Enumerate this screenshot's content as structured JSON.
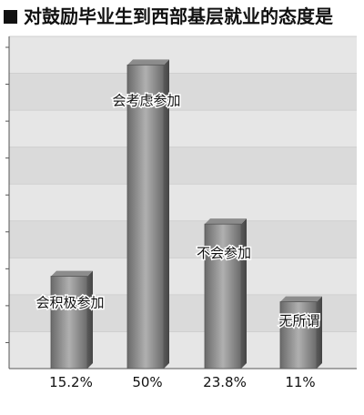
{
  "title": "对鼓励毕业生到西部基层就业的态度是",
  "chart_data": {
    "type": "bar",
    "title": "对鼓励毕业生到西部基层就业的态度是",
    "categories": [
      "会积极参加",
      "会考虑参加",
      "不会参加",
      "无所谓"
    ],
    "values": [
      15.2,
      50,
      23.8,
      11
    ],
    "data_labels": [
      "15.2%",
      "50%",
      "23.8%",
      "11%"
    ],
    "ylim": [
      0,
      52
    ],
    "grid": true,
    "legend": "none",
    "colors": {
      "bar_light": "#b0b0b0",
      "bar_dark": "#6a6a6a",
      "plot_band_a": "#e6e6e6",
      "plot_band_b": "#dadada"
    }
  }
}
